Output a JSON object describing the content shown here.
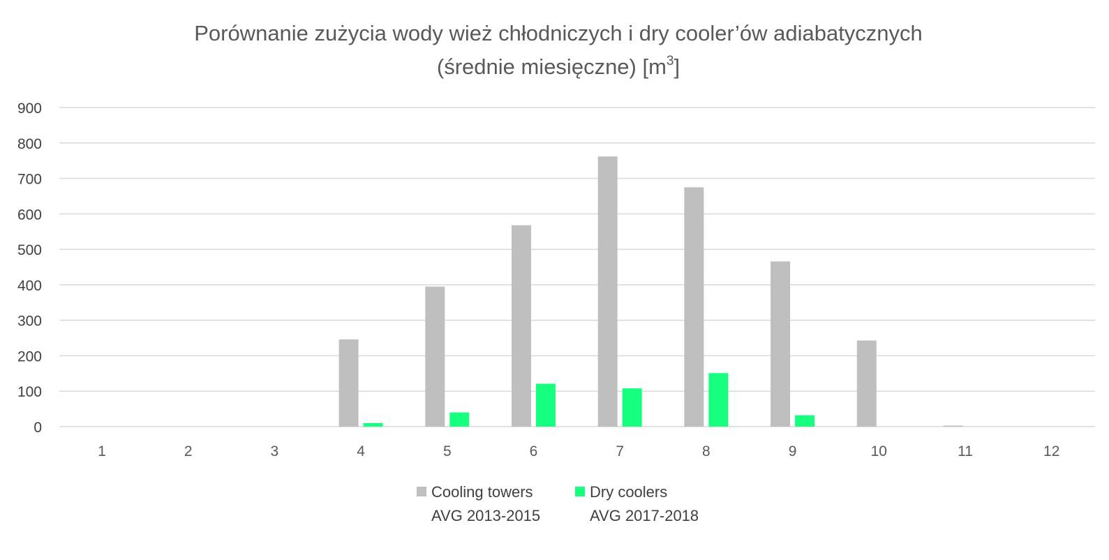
{
  "chart_data": {
    "type": "bar",
    "title_line1": "Porównanie zużycia wody wież chłodniczych i dry cooler’ów adiabatycznych",
    "title_line2": "(średnie miesięczne) [m",
    "title_sup": "3",
    "title_line2_end": "]",
    "xlabel": "",
    "ylabel": "",
    "ylim": [
      0,
      900
    ],
    "yticks": [
      0,
      100,
      200,
      300,
      400,
      500,
      600,
      700,
      800,
      900
    ],
    "categories": [
      "1",
      "2",
      "3",
      "4",
      "5",
      "6",
      "7",
      "8",
      "9",
      "10",
      "11",
      "12"
    ],
    "grid": true,
    "legend_position": "bottom",
    "series": [
      {
        "name": "Cooling towers",
        "name_line2": "AVG 2013-2015",
        "color": "#bfbfbf",
        "values": [
          0,
          0,
          0,
          246,
          395,
          568,
          762,
          675,
          466,
          243,
          3,
          0
        ]
      },
      {
        "name": "Dry coolers",
        "name_line2": "AVG 2017-2018",
        "color": "#17ff7f",
        "values": [
          0,
          0,
          0,
          10,
          40,
          121,
          108,
          151,
          32,
          0,
          0,
          0
        ]
      }
    ]
  }
}
